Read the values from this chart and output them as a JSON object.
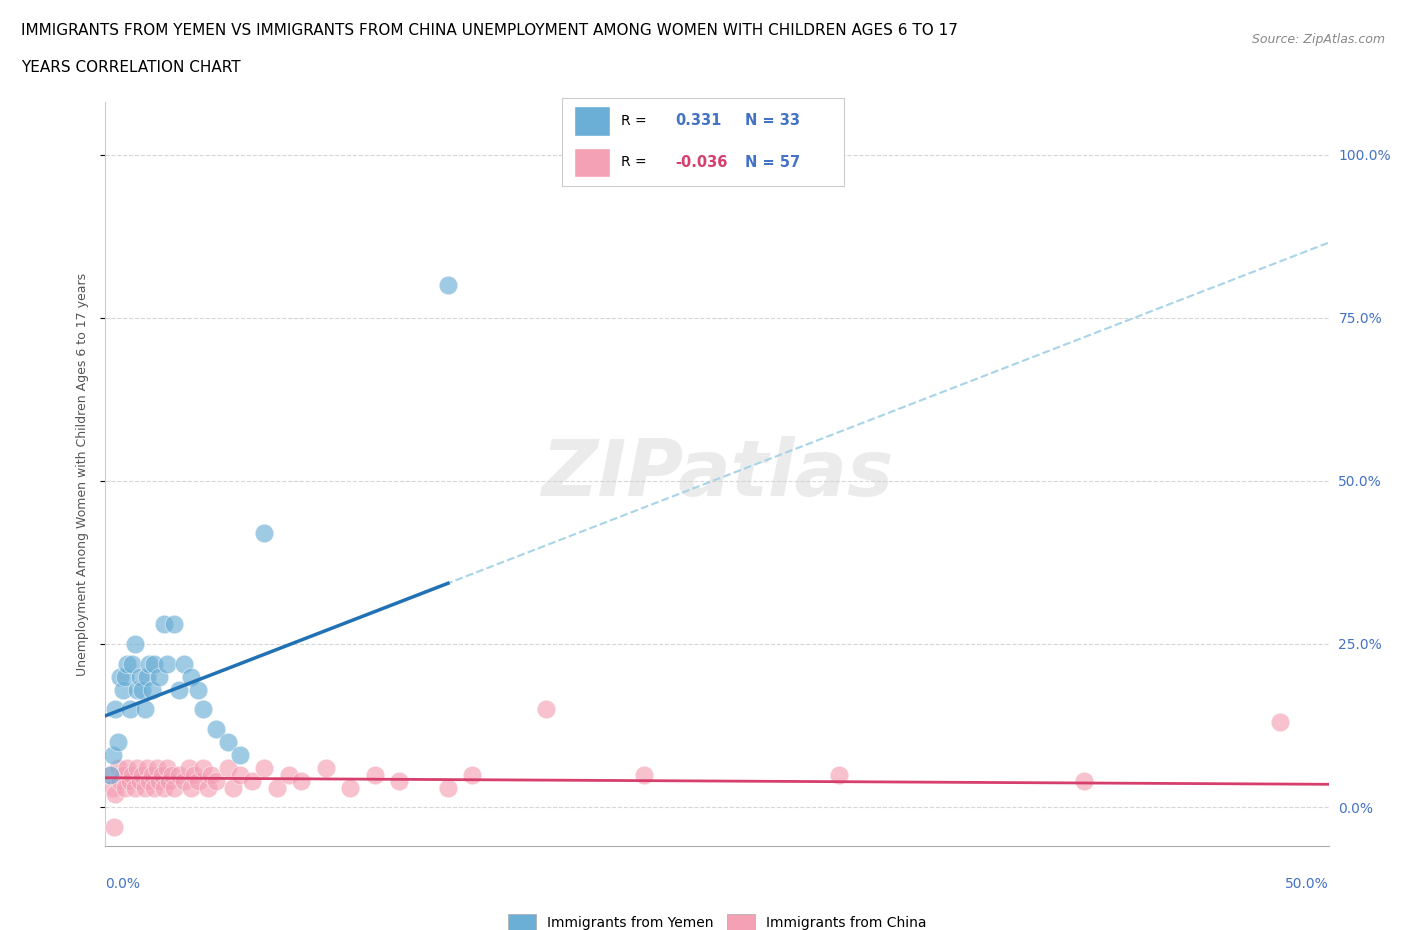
{
  "title_line1": "IMMIGRANTS FROM YEMEN VS IMMIGRANTS FROM CHINA UNEMPLOYMENT AMONG WOMEN WITH CHILDREN AGES 6 TO 17",
  "title_line2": "YEARS CORRELATION CHART",
  "source": "Source: ZipAtlas.com",
  "ylabel": "Unemployment Among Women with Children Ages 6 to 17 years",
  "ytick_labels": [
    "0.0%",
    "25.0%",
    "50.0%",
    "75.0%",
    "100.0%"
  ],
  "ytick_values": [
    0,
    25,
    50,
    75,
    100
  ],
  "xlim": [
    0,
    50
  ],
  "ylim": [
    -6,
    108
  ],
  "watermark": "ZIPatlas",
  "color_yemen": "#6baed6",
  "color_china": "#f4a0b5",
  "trendline_yemen_solid_color": "#2171b5",
  "trendline_china_color": "#d63e6c",
  "trendline_dashed_color": "#a8d4e6",
  "yemen_x": [
    0.2,
    0.3,
    0.4,
    0.5,
    0.6,
    0.7,
    0.8,
    0.9,
    1.0,
    1.1,
    1.2,
    1.3,
    1.4,
    1.5,
    1.6,
    1.7,
    1.8,
    1.9,
    2.0,
    2.2,
    2.4,
    2.5,
    2.8,
    3.0,
    3.2,
    3.5,
    3.8,
    4.0,
    4.5,
    5.0,
    5.5,
    6.5,
    14.0
  ],
  "yemen_y": [
    5,
    8,
    15,
    10,
    20,
    18,
    20,
    22,
    15,
    22,
    25,
    18,
    20,
    18,
    15,
    20,
    22,
    18,
    22,
    20,
    28,
    22,
    28,
    18,
    22,
    20,
    18,
    15,
    12,
    10,
    8,
    42,
    80
  ],
  "china_x": [
    0.2,
    0.3,
    0.4,
    0.5,
    0.6,
    0.7,
    0.8,
    0.9,
    1.0,
    1.1,
    1.2,
    1.3,
    1.4,
    1.5,
    1.6,
    1.7,
    1.8,
    1.9,
    2.0,
    2.1,
    2.2,
    2.3,
    2.4,
    2.5,
    2.6,
    2.7,
    2.8,
    3.0,
    3.2,
    3.4,
    3.5,
    3.6,
    3.8,
    4.0,
    4.2,
    4.3,
    4.5,
    5.0,
    5.2,
    5.5,
    6.0,
    6.5,
    7.0,
    7.5,
    8.0,
    9.0,
    10.0,
    11.0,
    12.0,
    14.0,
    15.0,
    18.0,
    22.0,
    30.0,
    40.0,
    48.0,
    0.35
  ],
  "china_y": [
    5,
    3,
    2,
    6,
    4,
    5,
    3,
    6,
    4,
    5,
    3,
    6,
    4,
    5,
    3,
    6,
    4,
    5,
    3,
    6,
    4,
    5,
    3,
    6,
    4,
    5,
    3,
    5,
    4,
    6,
    3,
    5,
    4,
    6,
    3,
    5,
    4,
    6,
    3,
    5,
    4,
    6,
    3,
    5,
    4,
    6,
    3,
    5,
    4,
    3,
    5,
    15,
    5,
    5,
    4,
    13,
    -3
  ],
  "trend_slope": 1.45,
  "trend_intercept": 14.0,
  "trend_china_slope": -0.02,
  "trend_china_intercept": 4.5,
  "solid_x_end": 14.0
}
